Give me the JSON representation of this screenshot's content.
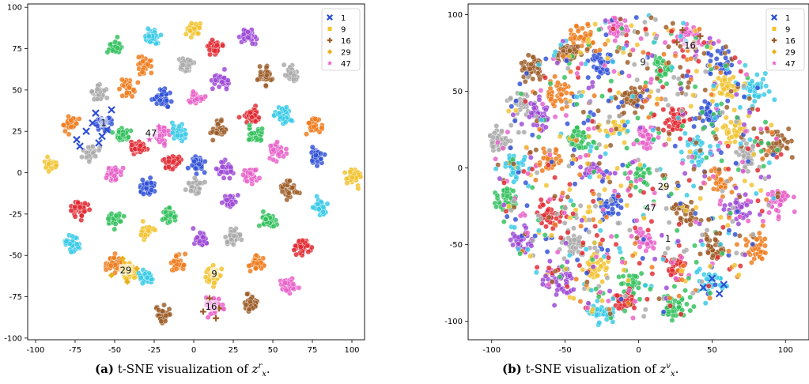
{
  "chart_data": [
    {
      "type": "scatter",
      "panel": "a",
      "xlim": [
        -105,
        108
      ],
      "ylim": [
        -101,
        102
      ],
      "xticks": [
        -100,
        -75,
        -50,
        -25,
        0,
        25,
        50,
        75,
        100
      ],
      "yticks": [
        -100,
        -75,
        -50,
        -25,
        0,
        25,
        50,
        75,
        100
      ],
      "legend": {
        "placement": "top-right",
        "entries": [
          {
            "label": "1",
            "marker": "x",
            "color": "#2e4fd6"
          },
          {
            "label": "9",
            "marker": "square",
            "color": "#f2c22c"
          },
          {
            "label": "16",
            "marker": "plus",
            "color": "#9b5a24"
          },
          {
            "label": "29",
            "marker": "diamond",
            "color": "#e8b21e"
          },
          {
            "label": "47",
            "marker": "star",
            "color": "#e85ec8"
          }
        ]
      },
      "annotations": [
        {
          "text": "1",
          "x": -57,
          "y": 30
        },
        {
          "text": "47",
          "x": -27,
          "y": 24
        },
        {
          "text": "29",
          "x": -43,
          "y": -59
        },
        {
          "text": "9",
          "x": 13,
          "y": -61
        },
        {
          "text": "16",
          "x": 11,
          "y": -81
        }
      ],
      "clusters": [
        {
          "x": 0,
          "y": 87,
          "c": "#f2c22c",
          "n": 38
        },
        {
          "x": -27,
          "y": 82,
          "c": "#36c9e6",
          "n": 40
        },
        {
          "x": 35,
          "y": 83,
          "c": "#9b45d6",
          "n": 38
        },
        {
          "x": -50,
          "y": 76,
          "c": "#2fbf5a",
          "n": 34
        },
        {
          "x": 13,
          "y": 76,
          "c": "#e0262e",
          "n": 38
        },
        {
          "x": -32,
          "y": 65,
          "c": "#ee7a1a",
          "n": 26
        },
        {
          "x": -5,
          "y": 65,
          "c": "#a8a8a8",
          "n": 36
        },
        {
          "x": 45,
          "y": 60,
          "c": "#9b5a24",
          "n": 34
        },
        {
          "x": 62,
          "y": 60,
          "c": "#a8a8a8",
          "n": 34
        },
        {
          "x": 17,
          "y": 57,
          "c": "#9b45d6",
          "n": 38
        },
        {
          "x": -60,
          "y": 48,
          "c": "#a8a8a8",
          "n": 34
        },
        {
          "x": -42,
          "y": 51,
          "c": "#ee7a1a",
          "n": 30
        },
        {
          "x": -20,
          "y": 45,
          "c": "#2e4fd6",
          "n": 38
        },
        {
          "x": 1,
          "y": 45,
          "c": "#e85ec8",
          "n": 34
        },
        {
          "x": 37,
          "y": 35,
          "c": "#e0262e",
          "n": 38
        },
        {
          "x": 57,
          "y": 35,
          "c": "#36c9e6",
          "n": 34
        },
        {
          "x": -78,
          "y": 30,
          "c": "#ee7a1a",
          "n": 34
        },
        {
          "x": -57,
          "y": 30,
          "c": "#2e4fd6",
          "n": 30
        },
        {
          "x": 76,
          "y": 29,
          "c": "#ee7a1a",
          "n": 34
        },
        {
          "x": -45,
          "y": 23,
          "c": "#2fbf5a",
          "n": 36
        },
        {
          "x": -20,
          "y": 23,
          "c": "#e85ec8",
          "n": 34
        },
        {
          "x": -10,
          "y": 24,
          "c": "#36c9e6",
          "n": 34
        },
        {
          "x": 16,
          "y": 26,
          "c": "#9b5a24",
          "n": 32
        },
        {
          "x": 39,
          "y": 22,
          "c": "#2fbf5a",
          "n": 38
        },
        {
          "x": -35,
          "y": 15,
          "c": "#e0262e",
          "n": 46
        },
        {
          "x": -14,
          "y": 7,
          "c": "#e0262e",
          "n": 40
        },
        {
          "x": 53,
          "y": 13,
          "c": "#e85ec8",
          "n": 34
        },
        {
          "x": -65,
          "y": 12,
          "c": "#a8a8a8",
          "n": 30
        },
        {
          "x": 77,
          "y": 10,
          "c": "#2e4fd6",
          "n": 34
        },
        {
          "x": -90,
          "y": 5,
          "c": "#f2c22c",
          "n": 34
        },
        {
          "x": 100,
          "y": -3,
          "c": "#f2c22c",
          "n": 34
        },
        {
          "x": 3,
          "y": 5,
          "c": "#2e4fd6",
          "n": 32
        },
        {
          "x": 20,
          "y": 2,
          "c": "#9b45d6",
          "n": 30
        },
        {
          "x": -50,
          "y": 0,
          "c": "#e85ec8",
          "n": 32
        },
        {
          "x": 36,
          "y": -2,
          "c": "#e85ec8",
          "n": 34
        },
        {
          "x": -30,
          "y": -9,
          "c": "#2e4fd6",
          "n": 36
        },
        {
          "x": 2,
          "y": -8,
          "c": "#a8a8a8",
          "n": 30
        },
        {
          "x": 23,
          "y": -17,
          "c": "#9b45d6",
          "n": 34
        },
        {
          "x": 60,
          "y": -10,
          "c": "#9b5a24",
          "n": 32
        },
        {
          "x": -73,
          "y": -22,
          "c": "#e0262e",
          "n": 32
        },
        {
          "x": 80,
          "y": -22,
          "c": "#36c9e6",
          "n": 32
        },
        {
          "x": -50,
          "y": -28,
          "c": "#2fbf5a",
          "n": 32
        },
        {
          "x": -15,
          "y": -25,
          "c": "#2fbf5a",
          "n": 32
        },
        {
          "x": 47,
          "y": -28,
          "c": "#2fbf5a",
          "n": 34
        },
        {
          "x": -30,
          "y": -35,
          "c": "#f2c22c",
          "n": 30
        },
        {
          "x": -77,
          "y": -42,
          "c": "#36c9e6",
          "n": 30
        },
        {
          "x": 5,
          "y": -40,
          "c": "#9b45d6",
          "n": 32
        },
        {
          "x": 25,
          "y": -39,
          "c": "#a8a8a8",
          "n": 34
        },
        {
          "x": 69,
          "y": -45,
          "c": "#e0262e",
          "n": 34
        },
        {
          "x": -50,
          "y": -55,
          "c": "#ee7a1a",
          "n": 60
        },
        {
          "x": -40,
          "y": -60,
          "c": "#f2c22c",
          "n": 44
        },
        {
          "x": -30,
          "y": -63,
          "c": "#36c9e6",
          "n": 28
        },
        {
          "x": -10,
          "y": -55,
          "c": "#ee7a1a",
          "n": 32
        },
        {
          "x": 40,
          "y": -55,
          "c": "#ee7a1a",
          "n": 32
        },
        {
          "x": 12,
          "y": -62,
          "c": "#f2c22c",
          "n": 34
        },
        {
          "x": 60,
          "y": -68,
          "c": "#e85ec8",
          "n": 32
        },
        {
          "x": 12,
          "y": -80,
          "c": "#e85ec8",
          "n": 40
        },
        {
          "x": 36,
          "y": -80,
          "c": "#9b5a24",
          "n": 34
        },
        {
          "x": -20,
          "y": -85,
          "c": "#9b5a24",
          "n": 34
        }
      ],
      "markers": [
        {
          "x": -62,
          "y": 36,
          "label": "1"
        },
        {
          "x": -68,
          "y": 25,
          "label": "1"
        },
        {
          "x": -58,
          "y": 22,
          "label": "1"
        },
        {
          "x": -74,
          "y": 20,
          "label": "1"
        },
        {
          "x": -52,
          "y": 38,
          "label": "1"
        },
        {
          "x": -64,
          "y": 30,
          "label": "1"
        },
        {
          "x": -55,
          "y": 26,
          "label": "1"
        },
        {
          "x": -72,
          "y": 16,
          "label": "1"
        },
        {
          "x": -60,
          "y": 18,
          "label": "1"
        },
        {
          "x": 10,
          "y": -76,
          "label": "16"
        },
        {
          "x": 16,
          "y": -82,
          "label": "16"
        },
        {
          "x": 6,
          "y": -84,
          "label": "16"
        },
        {
          "x": 14,
          "y": -88,
          "label": "16"
        },
        {
          "x": -45,
          "y": -52,
          "label": "29"
        },
        {
          "x": -36,
          "y": -58,
          "label": "29"
        },
        {
          "x": -52,
          "y": -62,
          "label": "29"
        },
        {
          "x": -42,
          "y": -66,
          "label": "29"
        },
        {
          "x": -22,
          "y": 28,
          "label": "47"
        },
        {
          "x": -28,
          "y": 20,
          "label": "47"
        }
      ]
    },
    {
      "type": "scatter",
      "panel": "b",
      "xlim": [
        -116,
        116
      ],
      "ylim": [
        -112,
        107
      ],
      "xticks": [
        -100,
        -50,
        0,
        50,
        100
      ],
      "yticks": [
        -100,
        -50,
        0,
        50,
        100
      ],
      "legend": {
        "placement": "top-right",
        "entries": [
          {
            "label": "1",
            "marker": "x",
            "color": "#2e4fd6"
          },
          {
            "label": "9",
            "marker": "square",
            "color": "#f2c22c"
          },
          {
            "label": "16",
            "marker": "plus",
            "color": "#9b5a24"
          },
          {
            "label": "29",
            "marker": "diamond",
            "color": "#e8b21e"
          },
          {
            "label": "47",
            "marker": "star",
            "color": "#e85ec8"
          }
        ]
      },
      "annotations": [
        {
          "text": "16",
          "x": 35,
          "y": 80
        },
        {
          "text": "9",
          "x": 3,
          "y": 69
        },
        {
          "text": "29",
          "x": 17,
          "y": -12
        },
        {
          "text": "47",
          "x": 8,
          "y": -26
        },
        {
          "text": "1",
          "x": 20,
          "y": -46
        }
      ],
      "clusters": [
        {
          "x": -38,
          "y": 86,
          "c": "#ee7a1a",
          "n": 38
        },
        {
          "x": -15,
          "y": 90,
          "c": "#e85ec8",
          "n": 30
        },
        {
          "x": 35,
          "y": 85,
          "c": "#e85ec8",
          "n": 40
        },
        {
          "x": -48,
          "y": 75,
          "c": "#9b5a24",
          "n": 38
        },
        {
          "x": -72,
          "y": 64,
          "c": "#9b5a24",
          "n": 38
        },
        {
          "x": -25,
          "y": 68,
          "c": "#2e4fd6",
          "n": 32
        },
        {
          "x": 15,
          "y": 65,
          "c": "#2fbf5a",
          "n": 32
        },
        {
          "x": 55,
          "y": 68,
          "c": "#2e4fd6",
          "n": 26
        },
        {
          "x": 80,
          "y": 52,
          "c": "#36c9e6",
          "n": 38
        },
        {
          "x": 58,
          "y": 52,
          "c": "#f2c22c",
          "n": 34
        },
        {
          "x": -80,
          "y": 43,
          "c": "#a8a8a8",
          "n": 26
        },
        {
          "x": -55,
          "y": 48,
          "c": "#ee7a1a",
          "n": 34
        },
        {
          "x": -5,
          "y": 45,
          "c": "#9b5a24",
          "n": 40
        },
        {
          "x": 48,
          "y": 35,
          "c": "#2e4fd6",
          "n": 40
        },
        {
          "x": 25,
          "y": 30,
          "c": "#e0262e",
          "n": 40
        },
        {
          "x": -68,
          "y": 35,
          "c": "#9b45d6",
          "n": 34
        },
        {
          "x": -95,
          "y": 18,
          "c": "#a8a8a8",
          "n": 36
        },
        {
          "x": 95,
          "y": 18,
          "c": "#9b5a24",
          "n": 36
        },
        {
          "x": 65,
          "y": 25,
          "c": "#f2c22c",
          "n": 34
        },
        {
          "x": -40,
          "y": 20,
          "c": "#2fbf5a",
          "n": 32
        },
        {
          "x": -15,
          "y": 25,
          "c": "#f2c22c",
          "n": 30
        },
        {
          "x": 5,
          "y": 20,
          "c": "#e85ec8",
          "n": 30
        },
        {
          "x": 40,
          "y": 12,
          "c": "#36c9e6",
          "n": 30
        },
        {
          "x": 75,
          "y": 8,
          "c": "#a8a8a8",
          "n": 32
        },
        {
          "x": -85,
          "y": 0,
          "c": "#36c9e6",
          "n": 34
        },
        {
          "x": -60,
          "y": 5,
          "c": "#ee7a1a",
          "n": 30
        },
        {
          "x": -30,
          "y": -2,
          "c": "#9b45d6",
          "n": 30
        },
        {
          "x": 0,
          "y": -5,
          "c": "#2fbf5a",
          "n": 30
        },
        {
          "x": 55,
          "y": -8,
          "c": "#ee7a1a",
          "n": 30
        },
        {
          "x": -90,
          "y": -20,
          "c": "#2fbf5a",
          "n": 36
        },
        {
          "x": 95,
          "y": -22,
          "c": "#e85ec8",
          "n": 36
        },
        {
          "x": -60,
          "y": -30,
          "c": "#e0262e",
          "n": 34
        },
        {
          "x": -20,
          "y": -25,
          "c": "#2e4fd6",
          "n": 30
        },
        {
          "x": 30,
          "y": -28,
          "c": "#9b5a24",
          "n": 30
        },
        {
          "x": 70,
          "y": -28,
          "c": "#9b45d6",
          "n": 32
        },
        {
          "x": -80,
          "y": -48,
          "c": "#9b45d6",
          "n": 38
        },
        {
          "x": -45,
          "y": -50,
          "c": "#a8a8a8",
          "n": 32
        },
        {
          "x": 50,
          "y": -52,
          "c": "#9b5a24",
          "n": 34
        },
        {
          "x": 80,
          "y": -52,
          "c": "#ee7a1a",
          "n": 36
        },
        {
          "x": 5,
          "y": -48,
          "c": "#e85ec8",
          "n": 32
        },
        {
          "x": -55,
          "y": -75,
          "c": "#9b45d6",
          "n": 38
        },
        {
          "x": -30,
          "y": -65,
          "c": "#f2c22c",
          "n": 30
        },
        {
          "x": 25,
          "y": -65,
          "c": "#e0262e",
          "n": 30
        },
        {
          "x": 50,
          "y": -75,
          "c": "#36c9e6",
          "n": 30
        },
        {
          "x": -5,
          "y": -75,
          "c": "#2fbf5a",
          "n": 30
        },
        {
          "x": -25,
          "y": -95,
          "c": "#36c9e6",
          "n": 36
        },
        {
          "x": 25,
          "y": -90,
          "c": "#2fbf5a",
          "n": 38
        },
        {
          "x": -10,
          "y": -88,
          "c": "#e0262e",
          "n": 30
        }
      ],
      "markers": [
        {
          "x": 30,
          "y": 90,
          "label": "16"
        },
        {
          "x": 42,
          "y": 86,
          "label": "16"
        },
        {
          "x": 38,
          "y": 78,
          "label": "16"
        },
        {
          "x": 26,
          "y": 82,
          "label": "16"
        },
        {
          "x": 50,
          "y": -72,
          "label": "1"
        },
        {
          "x": 58,
          "y": -76,
          "label": "1"
        },
        {
          "x": 44,
          "y": -78,
          "label": "1"
        },
        {
          "x": 55,
          "y": -82,
          "label": "1"
        },
        {
          "x": 18,
          "y": -12,
          "label": "29"
        },
        {
          "x": 10,
          "y": -24,
          "label": "47"
        }
      ]
    }
  ],
  "captions": {
    "a": {
      "label": "(a)",
      "text": "t-SNE visualization of",
      "symbol": "z",
      "sub": "x",
      "sup": "r",
      "end": "."
    },
    "b": {
      "label": "(b)",
      "text": "t-SNE visualization of",
      "symbol": "z",
      "sub": "x",
      "sup": "v",
      "end": "."
    }
  }
}
